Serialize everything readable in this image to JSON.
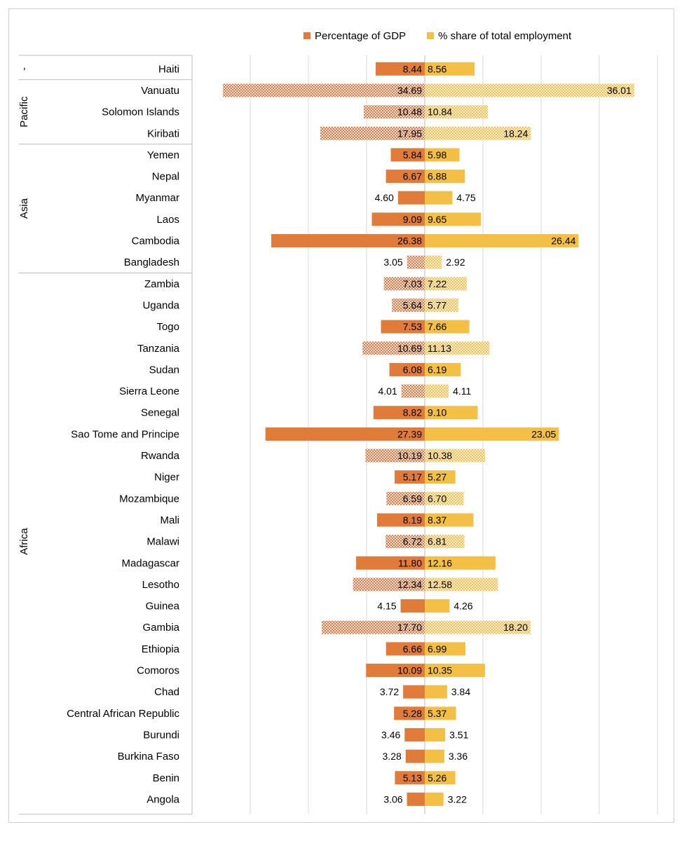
{
  "chart_data": {
    "type": "bar",
    "orientation": "horizontal-diverging",
    "legend": [
      {
        "name": "Percentage of GDP",
        "color": "#e07b39"
      },
      {
        "name": "% share of total employment",
        "color": "#f3bf44"
      }
    ],
    "legend_position": "top",
    "grid": true,
    "groups": [
      {
        "label": "-",
        "categories": [
          "Haiti"
        ]
      },
      {
        "label": "Pacific",
        "categories": [
          "Vanuatu",
          "Solomon Islands",
          "Kiribati"
        ]
      },
      {
        "label": "Asia",
        "categories": [
          "Yemen",
          "Nepal",
          "Myanmar",
          "Laos",
          "Cambodia",
          "Bangladesh"
        ]
      },
      {
        "label": "Africa",
        "categories": [
          "Zambia",
          "Uganda",
          "Togo",
          "Tanzania",
          "Sudan",
          "Sierra Leone",
          "Senegal",
          "Sao Tome and Principe",
          "Rwanda",
          "Niger",
          "Mozambique",
          "Mali",
          "Malawi",
          "Madagascar",
          "Lesotho",
          "Guinea",
          "Gambia",
          "Ethiopia",
          "Comoros",
          "Chad",
          "Central African Republic",
          "Burundi",
          "Burkina Faso",
          "Benin",
          "Angola"
        ]
      }
    ],
    "categories": [
      "Haiti",
      "Vanuatu",
      "Solomon Islands",
      "Kiribati",
      "Yemen",
      "Nepal",
      "Myanmar",
      "Laos",
      "Cambodia",
      "Bangladesh",
      "Zambia",
      "Uganda",
      "Togo",
      "Tanzania",
      "Sudan",
      "Sierra Leone",
      "Senegal",
      "Sao Tome and Principe",
      "Rwanda",
      "Niger",
      "Mozambique",
      "Mali",
      "Malawi",
      "Madagascar",
      "Lesotho",
      "Guinea",
      "Gambia",
      "Ethiopia",
      "Comoros",
      "Chad",
      "Central African Republic",
      "Burundi",
      "Burkina Faso",
      "Benin",
      "Angola"
    ],
    "series": [
      {
        "name": "Percentage of GDP",
        "values": [
          8.44,
          34.69,
          10.48,
          17.95,
          5.84,
          6.67,
          4.6,
          9.09,
          26.38,
          3.05,
          7.03,
          5.64,
          7.53,
          10.69,
          6.08,
          4.01,
          8.82,
          27.39,
          10.19,
          5.17,
          6.59,
          8.19,
          6.72,
          11.8,
          12.34,
          4.15,
          17.7,
          6.66,
          10.09,
          3.72,
          5.28,
          3.46,
          3.28,
          5.13,
          3.06
        ]
      },
      {
        "name": "% share of total employment",
        "values": [
          8.56,
          36.01,
          10.84,
          18.24,
          5.98,
          6.88,
          4.75,
          9.65,
          26.44,
          2.92,
          7.22,
          5.77,
          7.66,
          11.13,
          6.19,
          4.11,
          9.1,
          23.05,
          10.38,
          5.27,
          6.7,
          8.37,
          6.81,
          12.16,
          12.58,
          4.26,
          18.2,
          6.99,
          10.35,
          3.84,
          5.37,
          3.51,
          3.36,
          5.26,
          3.22
        ]
      }
    ],
    "gdp_labels": [
      "8.44",
      "34.69",
      "10.48",
      "17.95",
      "5.84",
      "6.67",
      "4.60",
      "9.09",
      "26.38",
      "3.05",
      "7.03",
      "5.64",
      "7.53",
      "10.69",
      "6.08",
      "4.01",
      "8.82",
      "27.39",
      "10.19",
      "5.17",
      "6.59",
      "8.19",
      "6.72",
      "11.80",
      "12.34",
      "4.15",
      "17.70",
      "6.66",
      "10.09",
      "3.72",
      "5.28",
      "3.46",
      "3.28",
      "5.13",
      "3.06"
    ],
    "employment_labels": [
      "8.56",
      "36.01",
      "10.84",
      "18.24",
      "5.98",
      "6.88",
      "4.75",
      "9.65",
      "26.44",
      "2.92",
      "7.22",
      "5.77",
      "7.66",
      "11.13",
      "6.19",
      "4.11",
      "9.10",
      "23.05",
      "10.38",
      "5.27",
      "6.70",
      "8.37",
      "6.81",
      "12.16",
      "12.58",
      "4.26",
      "18.20",
      "6.99",
      "10.35",
      "3.84",
      "5.37",
      "3.51",
      "3.36",
      "5.26",
      "3.22"
    ],
    "hatched": [
      false,
      true,
      true,
      true,
      false,
      false,
      false,
      false,
      false,
      true,
      true,
      true,
      false,
      true,
      false,
      true,
      false,
      false,
      true,
      false,
      true,
      false,
      true,
      false,
      true,
      false,
      true,
      false,
      false,
      false,
      false,
      false,
      false,
      false,
      false
    ],
    "xlim": [
      -40,
      40
    ],
    "grid_step": 10
  }
}
